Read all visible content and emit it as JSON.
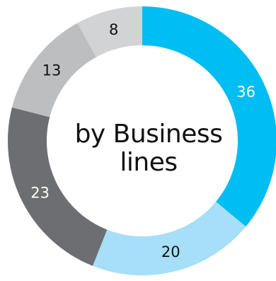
{
  "chart_data": {
    "type": "pie",
    "variant": "donut",
    "title_lines": [
      "by Business",
      "lines"
    ],
    "categories": [
      "",
      "",
      "",
      "",
      ""
    ],
    "values": [
      36,
      20,
      23,
      13,
      8
    ],
    "labels": [
      "36",
      "20",
      "23",
      "13",
      "8"
    ],
    "colors": [
      "#00BDF2",
      "#A7DEF8",
      "#6D6E71",
      "#BCBEC0",
      "#D1D3D4"
    ],
    "label_colors": [
      "#ffffff",
      "#111111",
      "#ffffff",
      "#111111",
      "#111111"
    ],
    "start_angle_deg": 0,
    "direction": "clockwise",
    "legend": "none"
  }
}
